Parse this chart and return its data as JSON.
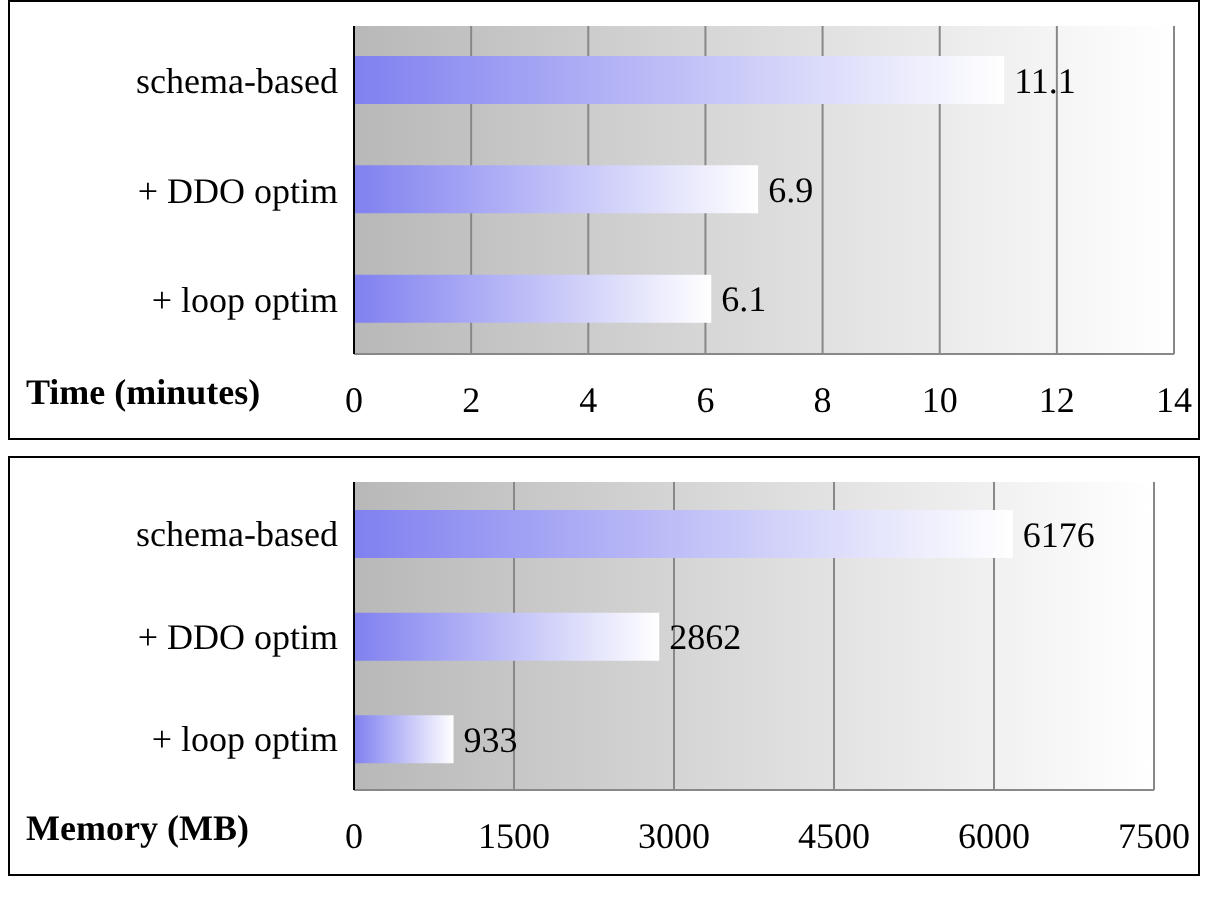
{
  "chart_data": [
    {
      "type": "bar",
      "orientation": "horizontal",
      "categories": [
        "schema-based",
        "+ DDO optim",
        "+ loop optim"
      ],
      "values": [
        11.1,
        6.9,
        6.1
      ],
      "color": "#8080f0",
      "xlim": [
        0,
        14
      ],
      "xticks": [
        0,
        2,
        4,
        6,
        8,
        10,
        12,
        14
      ],
      "xlabel": "Time (minutes)",
      "grid": "x",
      "data_labels": true
    },
    {
      "type": "bar",
      "orientation": "horizontal",
      "categories": [
        "schema-based",
        "+ DDO optim",
        "+ loop optim"
      ],
      "values": [
        6176,
        2862,
        933
      ],
      "color": "#8080f0",
      "xlim": [
        0,
        7500
      ],
      "xticks": [
        0,
        1500,
        3000,
        4500,
        6000,
        7500
      ],
      "xlabel": "Memory (MB)",
      "grid": "x",
      "data_labels": true
    }
  ]
}
